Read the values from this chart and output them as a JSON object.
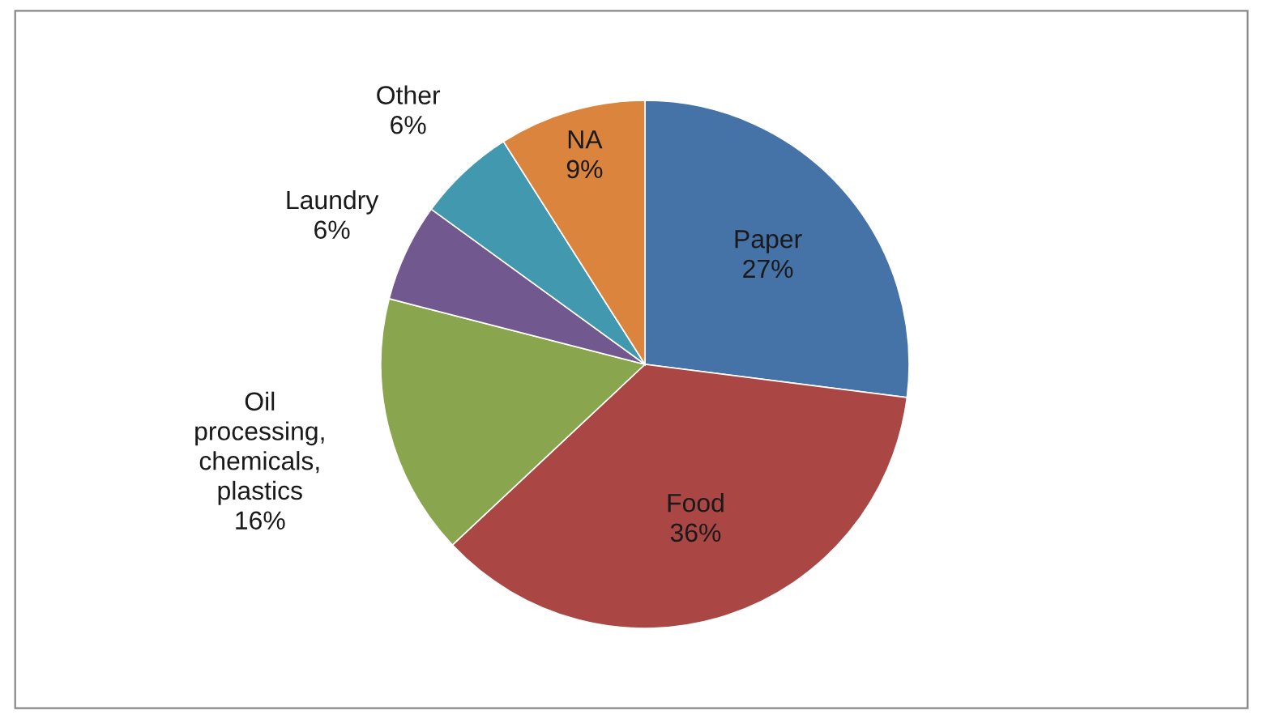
{
  "chart_data": {
    "type": "pie",
    "categories": [
      "Paper",
      "Food",
      "Oil processing, chemicals, plastics",
      "Laundry",
      "Other",
      "NA"
    ],
    "values": [
      27,
      36,
      16,
      6,
      6,
      9
    ],
    "colors": [
      "#4572a7",
      "#aa4643",
      "#89a54e",
      "#71588f",
      "#4198af",
      "#db843d"
    ],
    "value_labels": [
      "27%",
      "36%",
      "16%",
      "6%",
      "6%",
      "9%"
    ],
    "legend": false
  }
}
